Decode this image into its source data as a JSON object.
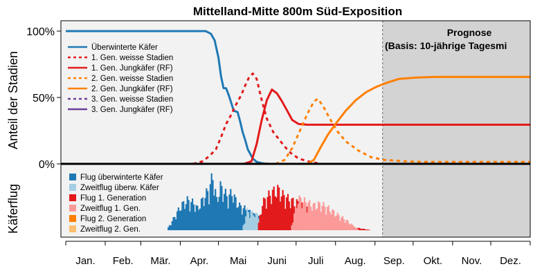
{
  "chart_data": {
    "type": "line",
    "title": "Mittelland-Mitte 800m Süd-Exposition",
    "ylabel_top": "Anteil der Stadien",
    "ylabel_bottom": "Käferflug",
    "y_ticks": [
      {
        "label": "100%",
        "value": 100
      },
      {
        "label": "50%",
        "value": 50
      },
      {
        "label": "0%",
        "value": 0
      }
    ],
    "months": [
      "Jan.",
      "Feb.",
      "Mär.",
      "Apr.",
      "Mai",
      "Juni",
      "Juli",
      "Aug.",
      "Sep.",
      "Okt.",
      "Nov.",
      "Dez."
    ],
    "month_start_days": [
      0,
      31,
      59,
      90,
      120,
      151,
      181,
      212,
      243,
      273,
      304,
      334,
      365
    ],
    "prognose_start_day": 249,
    "prognose_title": "Prognose",
    "prognose_subtitle": "(Basis: 10-jährige Tagesmi",
    "colors": {
      "ueberwintert": "#1f78b4",
      "gen1": "#e31a1c",
      "gen2": "#ff7f00",
      "gen3": "#6a3d9a",
      "flug_ueberw": "#1f78b4",
      "zweitflug_ueberw": "#a6cee3",
      "flug1": "#e31a1c",
      "zweitflug1": "#fb9a99",
      "flug2": "#ff7f00",
      "zweitflug2": "#fdbf6f",
      "prognose_bg": "#d3d3d3",
      "panel_bg": "#f2f2f2"
    },
    "legend_stages": [
      {
        "label": "Überwinterte Käfer",
        "color": "#1f78b4",
        "dash": false
      },
      {
        "label": "1. Gen. weisse Stadien",
        "color": "#e31a1c",
        "dash": true
      },
      {
        "label": "1. Gen. Jungkäfer (RF)",
        "color": "#e31a1c",
        "dash": false
      },
      {
        "label": "2. Gen. weisse Stadien",
        "color": "#ff7f00",
        "dash": true
      },
      {
        "label": "2. Gen. Jungkäfer (RF)",
        "color": "#ff7f00",
        "dash": false
      },
      {
        "label": "3. Gen. weisse Stadien",
        "color": "#6a3d9a",
        "dash": true
      },
      {
        "label": "3. Gen. Jungkäfer (RF)",
        "color": "#6a3d9a",
        "dash": false
      }
    ],
    "legend_flight": [
      {
        "label": "Flug überwinterte Käfer",
        "color": "#1f78b4"
      },
      {
        "label": "Zweitflug überw. Käfer",
        "color": "#a6cee3"
      },
      {
        "label": "Flug 1. Generation",
        "color": "#e31a1c"
      },
      {
        "label": "Zweitflug 1. Gen.",
        "color": "#fb9a99"
      },
      {
        "label": "Flug 2. Generation",
        "color": "#ff7f00"
      },
      {
        "label": "Zweitflug 2. Gen.",
        "color": "#fdbf6f"
      }
    ],
    "series": [
      {
        "key": "ueberwintert",
        "color": "#1f78b4",
        "dash": false,
        "points": [
          [
            0,
            100
          ],
          [
            110,
            100
          ],
          [
            114,
            98
          ],
          [
            117,
            93
          ],
          [
            120,
            80
          ],
          [
            122,
            66
          ],
          [
            124,
            57
          ],
          [
            126,
            57
          ],
          [
            128,
            52
          ],
          [
            130,
            46
          ],
          [
            132,
            40
          ],
          [
            135,
            39
          ],
          [
            137,
            32
          ],
          [
            139,
            24
          ],
          [
            141,
            18
          ],
          [
            143,
            11
          ],
          [
            147,
            4
          ],
          [
            150,
            1.5
          ],
          [
            155,
            0.3
          ],
          [
            160,
            0
          ]
        ]
      },
      {
        "key": "gen1_weiss",
        "color": "#e31a1c",
        "dash": true,
        "points": [
          [
            100,
            0
          ],
          [
            108,
            2
          ],
          [
            114,
            7
          ],
          [
            118,
            11
          ],
          [
            122,
            20
          ],
          [
            126,
            30
          ],
          [
            130,
            37
          ],
          [
            134,
            45
          ],
          [
            138,
            52
          ],
          [
            141,
            59
          ],
          [
            144,
            65
          ],
          [
            147,
            68
          ],
          [
            150,
            64
          ],
          [
            154,
            48
          ],
          [
            158,
            34
          ],
          [
            163,
            24
          ],
          [
            168,
            18
          ],
          [
            172,
            13
          ],
          [
            177,
            8
          ],
          [
            183,
            4
          ],
          [
            190,
            2
          ],
          [
            200,
            0
          ]
        ]
      },
      {
        "key": "gen1_jung",
        "color": "#e31a1c",
        "dash": false,
        "points": [
          [
            140,
            0
          ],
          [
            146,
            2
          ],
          [
            150,
            15
          ],
          [
            154,
            33
          ],
          [
            158,
            48
          ],
          [
            162,
            56
          ],
          [
            166,
            53
          ],
          [
            170,
            47
          ],
          [
            174,
            40
          ],
          [
            178,
            33
          ],
          [
            183,
            30
          ],
          [
            190,
            29.5
          ],
          [
            365,
            29.5
          ]
        ]
      },
      {
        "key": "gen2_weiss",
        "color": "#ff7f00",
        "dash": true,
        "points": [
          [
            165,
            0
          ],
          [
            172,
            3
          ],
          [
            178,
            12
          ],
          [
            184,
            25
          ],
          [
            190,
            38
          ],
          [
            195,
            47
          ],
          [
            198,
            49
          ],
          [
            202,
            44
          ],
          [
            207,
            35
          ],
          [
            213,
            25
          ],
          [
            220,
            17
          ],
          [
            230,
            10
          ],
          [
            240,
            5
          ],
          [
            250,
            3
          ],
          [
            265,
            2
          ],
          [
            280,
            1.5
          ],
          [
            365,
            1.5
          ]
        ]
      },
      {
        "key": "gen2_jung",
        "color": "#ff7f00",
        "dash": false,
        "points": [
          [
            190,
            0
          ],
          [
            195,
            3
          ],
          [
            200,
            12
          ],
          [
            206,
            22
          ],
          [
            212,
            30
          ],
          [
            220,
            40
          ],
          [
            228,
            48
          ],
          [
            236,
            54
          ],
          [
            244,
            58
          ],
          [
            252,
            61
          ],
          [
            262,
            64
          ],
          [
            275,
            65
          ],
          [
            290,
            65.5
          ],
          [
            365,
            65.5
          ]
        ]
      }
    ],
    "flight_clusters": [
      {
        "series": "Flug überwinterte Käfer",
        "color": "#1f78b4",
        "start": 80,
        "end": 178,
        "peaks": [
          [
            80,
            0.05
          ],
          [
            85,
            0.25
          ],
          [
            90,
            0.45
          ],
          [
            95,
            0.55
          ],
          [
            100,
            0.5
          ],
          [
            103,
            0.4
          ],
          [
            108,
            0.6
          ],
          [
            112,
            0.75
          ],
          [
            115,
            1.0
          ],
          [
            118,
            0.55
          ],
          [
            121,
            0.8
          ],
          [
            124,
            0.7
          ],
          [
            127,
            0.6
          ],
          [
            130,
            0.7
          ],
          [
            133,
            0.55
          ],
          [
            136,
            0.45
          ],
          [
            140,
            0.4
          ],
          [
            146,
            0.3
          ],
          [
            152,
            0.22
          ],
          [
            160,
            0.15
          ],
          [
            168,
            0.08
          ],
          [
            175,
            0.03
          ],
          [
            178,
            0
          ]
        ]
      },
      {
        "series": "Zweitflug überw. Käfer",
        "color": "#a6cee3",
        "start": 138,
        "end": 205,
        "peaks": [
          [
            138,
            0
          ],
          [
            142,
            0.35
          ],
          [
            148,
            0.3
          ],
          [
            154,
            0.25
          ],
          [
            160,
            0.2
          ],
          [
            170,
            0.15
          ],
          [
            180,
            0.1
          ],
          [
            192,
            0.06
          ],
          [
            205,
            0
          ]
        ]
      },
      {
        "series": "Flug 1. Generation",
        "color": "#e31a1c",
        "start": 150,
        "end": 240,
        "peaks": [
          [
            150,
            0
          ],
          [
            154,
            0.5
          ],
          [
            158,
            0.62
          ],
          [
            162,
            0.7
          ],
          [
            166,
            0.75
          ],
          [
            170,
            0.65
          ],
          [
            176,
            0.55
          ],
          [
            182,
            0.5
          ],
          [
            188,
            0.4
          ],
          [
            194,
            0.3
          ],
          [
            200,
            0.22
          ],
          [
            208,
            0.15
          ],
          [
            216,
            0.1
          ],
          [
            224,
            0.06
          ],
          [
            232,
            0.03
          ],
          [
            240,
            0
          ]
        ]
      },
      {
        "series": "Zweitflug 1. Gen.",
        "color": "#fb9a99",
        "start": 176,
        "end": 230,
        "peaks": [
          [
            176,
            0
          ],
          [
            182,
            0.58
          ],
          [
            188,
            0.52
          ],
          [
            194,
            0.45
          ],
          [
            200,
            0.48
          ],
          [
            206,
            0.4
          ],
          [
            212,
            0.3
          ],
          [
            220,
            0.18
          ],
          [
            230,
            0
          ]
        ]
      }
    ]
  }
}
